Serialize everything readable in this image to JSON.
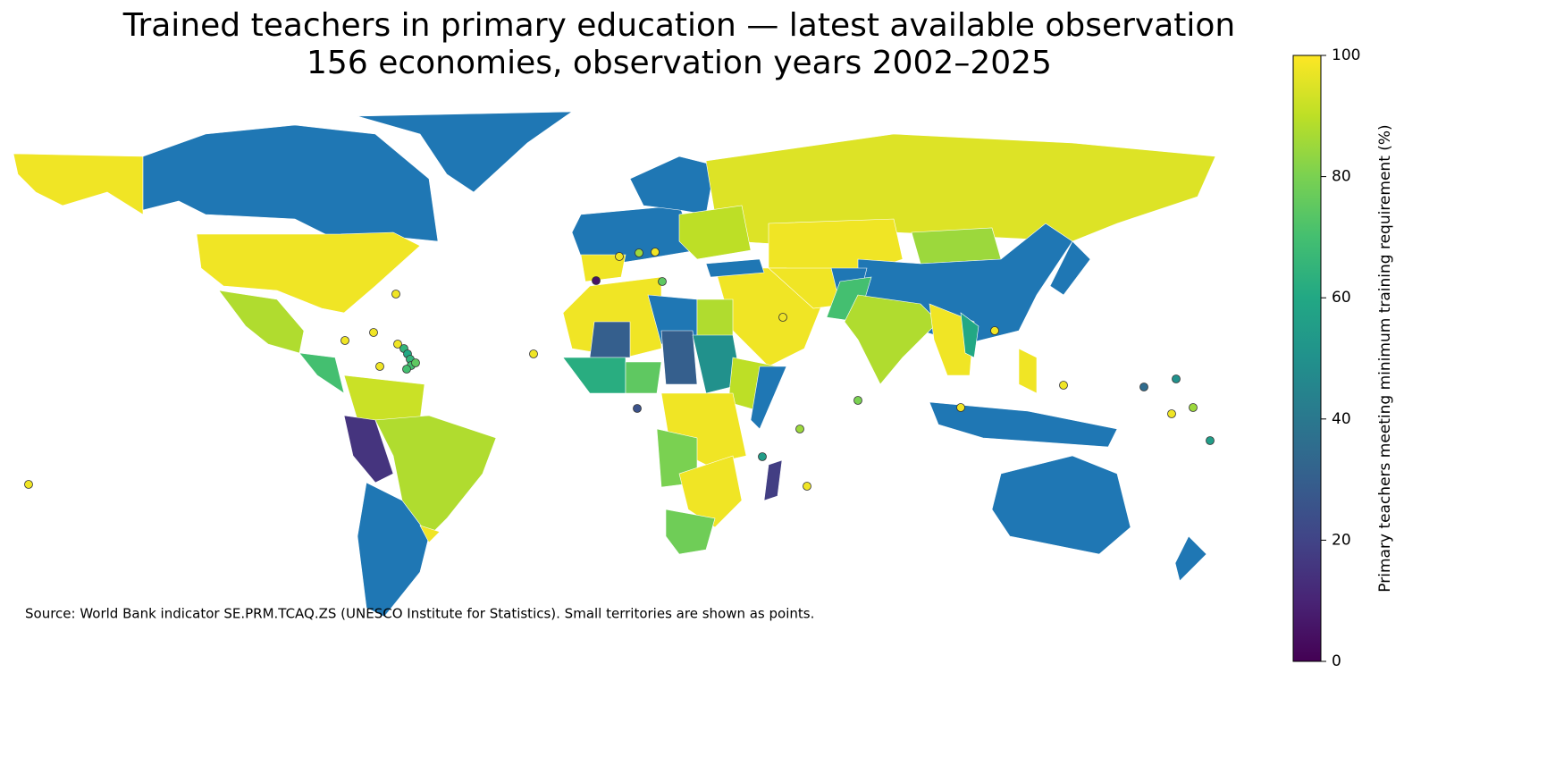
{
  "chart_data": {
    "type": "choropleth",
    "title": "Trained teachers in primary education — latest available observation",
    "subtitle": "156 economies, observation years 2002–2025",
    "source": "Source: World Bank indicator SE.PRM.TCAQ.ZS (UNESCO Institute for Statistics). Small territories are shown as points.",
    "colorbar_label": "Primary teachers meeting minimum training requirement (%)",
    "colormap": "viridis",
    "missing_color": "#1f77b4",
    "clim": [
      0,
      100
    ],
    "cticks": [
      0,
      20,
      40,
      60,
      80,
      100
    ],
    "values": [
      98,
      null,
      null,
      98,
      88,
      70,
      92,
      15,
      88,
      null,
      98,
      null,
      null,
      98,
      95,
      98,
      85,
      null,
      98,
      98,
      null,
      70,
      88,
      98,
      60,
      null,
      98,
      null,
      null,
      null,
      98,
      null,
      88,
      30,
      30,
      50,
      62,
      75,
      90,
      null,
      98,
      80,
      98,
      78,
      18,
      90,
      null
    ],
    "point_values": [
      98,
      98,
      98,
      98,
      98,
      65,
      60,
      65,
      70,
      70,
      75,
      98,
      98,
      5,
      98,
      85,
      98,
      75,
      98,
      98,
      25,
      80,
      85,
      55,
      98,
      98,
      98,
      35,
      50,
      98,
      85,
      55
    ]
  }
}
